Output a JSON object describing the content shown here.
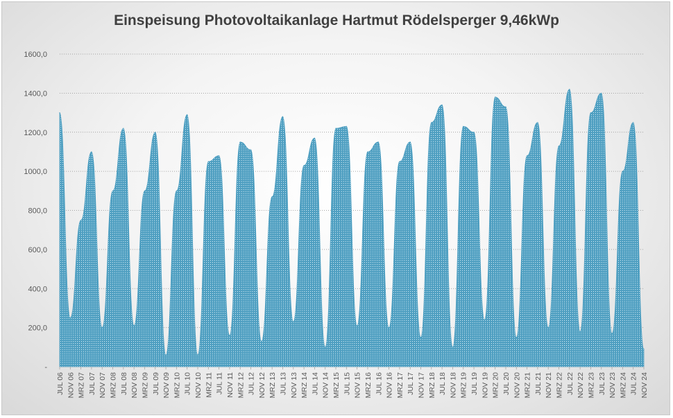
{
  "chart_data": {
    "type": "area",
    "title": "Einspeisung Photovoltaikanlage Hartmut Rödelsperger 9,46kWp",
    "xlabel": "",
    "ylabel": "",
    "ylim": [
      0,
      1600
    ],
    "yticks": [
      {
        "value": 0,
        "label": "-"
      },
      {
        "value": 200,
        "label": "200,0"
      },
      {
        "value": 400,
        "label": "400,0"
      },
      {
        "value": 600,
        "label": "600,0"
      },
      {
        "value": 800,
        "label": "800,0"
      },
      {
        "value": 1000,
        "label": "1000,0"
      },
      {
        "value": 1200,
        "label": "1200,0"
      },
      {
        "value": 1400,
        "label": "1400,0"
      },
      {
        "value": 1600,
        "label": "1600,0"
      }
    ],
    "grid": "horizontal dotted",
    "legend": "none",
    "series_color": "#4f9fc1",
    "categories": [
      "JUL 06",
      "NOV 06",
      "MRZ 07",
      "JUL 07",
      "NOV 07",
      "MRZ 08",
      "JUL 08",
      "NOV 08",
      "MRZ 09",
      "JUL 09",
      "NOV 09",
      "MRZ 10",
      "JUL 10",
      "NOV 10",
      "MRZ 11",
      "JUL 11",
      "NOV 11",
      "MRZ 12",
      "JUL 12",
      "NOV 12",
      "MRZ 13",
      "JUL 13",
      "NOV 13",
      "MRZ 14",
      "JUL 14",
      "NOV 14",
      "MRZ 15",
      "JUL 15",
      "NOV 15",
      "MRZ 16",
      "JUL 16",
      "NOV 16",
      "MRZ 17",
      "JUL 17",
      "NOV 17",
      "MRZ 18",
      "JUL 18",
      "NOV 18",
      "MRZ 19",
      "JUL 19",
      "NOV 19",
      "MRZ 20",
      "JUL 20",
      "NOV 20",
      "MRZ 21",
      "JUL 21",
      "NOV 21",
      "MRZ 22",
      "JUL 22",
      "NOV 22",
      "MRZ 23",
      "JUL 23",
      "NOV 23",
      "MRZ 24",
      "JUL 24",
      "NOV 24"
    ],
    "series": [
      {
        "values": [
          1300,
          250,
          750,
          1100,
          200,
          900,
          1220,
          210,
          900,
          1200,
          60,
          900,
          1290,
          60,
          1050,
          1080,
          160,
          1150,
          1110,
          130,
          870,
          1280,
          230,
          1030,
          1170,
          100,
          1220,
          1230,
          210,
          1100,
          1150,
          200,
          1050,
          1150,
          150,
          1250,
          1340,
          100,
          1230,
          1200,
          240,
          1380,
          1330,
          150,
          1080,
          1250,
          200,
          1130,
          1420,
          180,
          1300,
          1400,
          170,
          1000,
          1250,
          90
        ]
      }
    ]
  }
}
